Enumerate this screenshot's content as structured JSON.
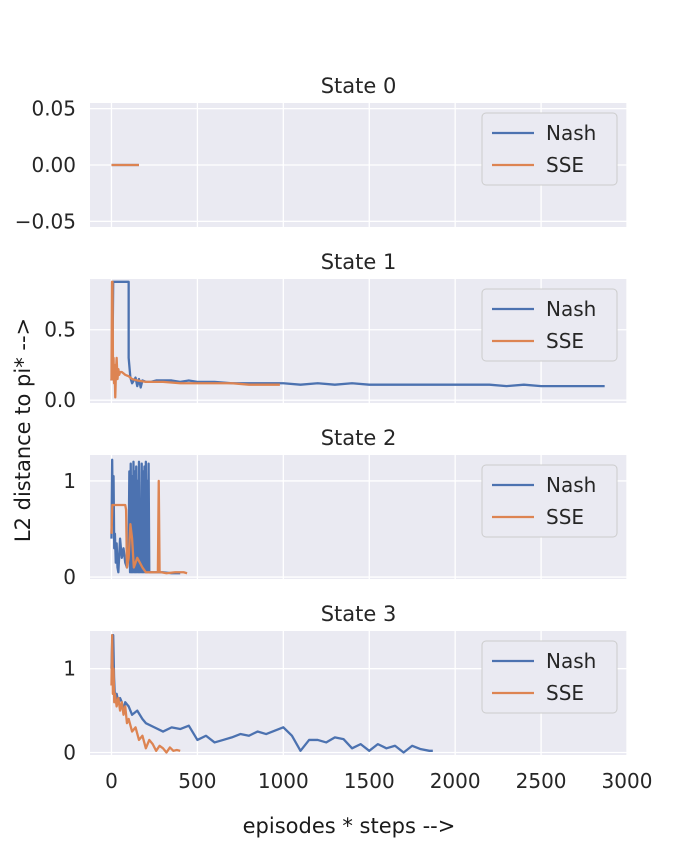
{
  "figure": {
    "ylabel": "L2 distance to pi* -->",
    "xlabel": "episodes * steps -->"
  },
  "chart_data": [
    {
      "type": "line",
      "title": "State 0",
      "xlim": [
        -125,
        3000
      ],
      "ylim": [
        -0.055,
        0.055
      ],
      "xticks": [
        0,
        500,
        1000,
        1500,
        2000,
        2500,
        3000
      ],
      "yticks": [
        -0.05,
        0.0,
        0.05
      ],
      "ytick_labels": [
        "−0.05",
        "0.00",
        "0.05"
      ],
      "grid": true,
      "legend": "upper right",
      "series": [
        {
          "name": "Nash",
          "color": "#4c72b0",
          "x": [
            0,
            160
          ],
          "y": [
            0.0,
            0.0
          ]
        },
        {
          "name": "SSE",
          "color": "#dd8452",
          "x": [
            0,
            160
          ],
          "y": [
            0.0,
            0.0
          ]
        }
      ]
    },
    {
      "type": "line",
      "title": "State 1",
      "xlim": [
        -125,
        3000
      ],
      "ylim": [
        -0.02,
        0.86
      ],
      "xticks": [
        0,
        500,
        1000,
        1500,
        2000,
        2500,
        3000
      ],
      "yticks": [
        0.0,
        0.5
      ],
      "ytick_labels": [
        "0.0",
        "0.5"
      ],
      "grid": true,
      "legend": "upper right",
      "series": [
        {
          "name": "Nash",
          "color": "#4c72b0",
          "x": [
            0,
            5,
            10,
            10,
            100,
            100,
            110,
            120,
            140,
            150,
            160,
            170,
            180,
            200,
            230,
            260,
            300,
            350,
            400,
            450,
            500,
            600,
            700,
            800,
            900,
            1000,
            1100,
            1200,
            1300,
            1400,
            1500,
            1600,
            1700,
            1800,
            1900,
            2000,
            2100,
            2200,
            2300,
            2400,
            2500,
            2600,
            2700,
            2800,
            2870
          ],
          "y": [
            0.14,
            0.2,
            0.84,
            0.84,
            0.84,
            0.3,
            0.16,
            0.12,
            0.16,
            0.1,
            0.15,
            0.09,
            0.14,
            0.13,
            0.13,
            0.14,
            0.14,
            0.14,
            0.13,
            0.14,
            0.13,
            0.13,
            0.12,
            0.12,
            0.12,
            0.12,
            0.11,
            0.12,
            0.11,
            0.12,
            0.11,
            0.11,
            0.11,
            0.11,
            0.11,
            0.11,
            0.11,
            0.11,
            0.1,
            0.11,
            0.1,
            0.1,
            0.1,
            0.1,
            0.1
          ]
        },
        {
          "name": "SSE",
          "color": "#dd8452",
          "x": [
            0,
            3,
            6,
            9,
            12,
            15,
            18,
            22,
            26,
            30,
            35,
            40,
            45,
            50,
            60,
            70,
            80,
            100,
            120,
            150,
            200,
            250,
            300,
            400,
            500,
            600,
            700,
            800,
            900,
            980
          ],
          "y": [
            0.14,
            0.84,
            0.84,
            0.15,
            0.3,
            0.12,
            0.25,
            0.02,
            0.2,
            0.3,
            0.15,
            0.22,
            0.18,
            0.2,
            0.2,
            0.19,
            0.18,
            0.17,
            0.15,
            0.14,
            0.13,
            0.13,
            0.13,
            0.12,
            0.12,
            0.12,
            0.12,
            0.11,
            0.11,
            0.11
          ]
        }
      ]
    },
    {
      "type": "line",
      "title": "State 2",
      "xlim": [
        -125,
        3000
      ],
      "ylim": [
        -0.02,
        1.27
      ],
      "xticks": [
        0,
        500,
        1000,
        1500,
        2000,
        2500,
        3000
      ],
      "yticks": [
        0,
        1
      ],
      "ytick_labels": [
        "0",
        "1"
      ],
      "grid": true,
      "legend": "upper right",
      "series": [
        {
          "name": "Nash",
          "color": "#4c72b0",
          "x": [
            0,
            4,
            8,
            12,
            16,
            20,
            25,
            30,
            35,
            40,
            50,
            60,
            70,
            80,
            90,
            100,
            104,
            108,
            112,
            116,
            120,
            124,
            128,
            132,
            136,
            140,
            144,
            148,
            152,
            156,
            160,
            164,
            168,
            172,
            176,
            180,
            184,
            188,
            192,
            196,
            200,
            204,
            208,
            212,
            216,
            220,
            300,
            350,
            400
          ],
          "y": [
            0.4,
            1.22,
            0.55,
            1.05,
            0.3,
            0.45,
            0.15,
            0.35,
            0.1,
            0.05,
            0.4,
            0.2,
            0.3,
            0.15,
            0.1,
            0.3,
            1.1,
            0.05,
            1.18,
            0.05,
            1.05,
            0.05,
            1.2,
            0.05,
            1.1,
            0.05,
            1.15,
            0.05,
            1.0,
            0.05,
            1.2,
            0.05,
            0.8,
            0.05,
            1.18,
            0.05,
            1.1,
            0.05,
            1.15,
            0.05,
            1.2,
            0.05,
            1.0,
            0.05,
            1.18,
            0.05,
            0.05,
            0.04,
            0.04
          ]
        },
        {
          "name": "SSE",
          "color": "#dd8452",
          "x": [
            0,
            5,
            10,
            15,
            20,
            50,
            80,
            85,
            90,
            100,
            110,
            120,
            130,
            150,
            180,
            200,
            230,
            250,
            270,
            275,
            280,
            285,
            290,
            320,
            370,
            420,
            440
          ],
          "y": [
            0.45,
            0.75,
            0.75,
            0.75,
            0.75,
            0.75,
            0.75,
            0.7,
            0.1,
            0.2,
            0.55,
            0.4,
            0.1,
            0.2,
            0.1,
            0.05,
            0.05,
            0.05,
            0.05,
            1.0,
            0.05,
            0.05,
            0.05,
            0.04,
            0.05,
            0.05,
            0.04
          ]
        }
      ]
    },
    {
      "type": "line",
      "title": "State 3",
      "xlim": [
        -125,
        3000
      ],
      "ylim": [
        -0.03,
        1.45
      ],
      "xticks": [
        0,
        500,
        1000,
        1500,
        2000,
        2500,
        3000
      ],
      "xtick_labels": [
        "0",
        "500",
        "1000",
        "1500",
        "2000",
        "2500",
        "3000"
      ],
      "yticks": [
        0,
        1
      ],
      "ytick_labels": [
        "0",
        "1"
      ],
      "grid": true,
      "legend": "upper right",
      "series": [
        {
          "name": "Nash",
          "color": "#4c72b0",
          "x": [
            0,
            5,
            10,
            15,
            20,
            30,
            40,
            50,
            60,
            70,
            80,
            100,
            120,
            150,
            180,
            200,
            250,
            300,
            350,
            400,
            450,
            500,
            550,
            600,
            650,
            700,
            750,
            800,
            850,
            900,
            950,
            1000,
            1050,
            1100,
            1150,
            1200,
            1250,
            1300,
            1350,
            1400,
            1450,
            1500,
            1550,
            1600,
            1650,
            1700,
            1750,
            1800,
            1850,
            1870
          ],
          "y": [
            1.0,
            1.4,
            1.4,
            0.9,
            0.65,
            0.7,
            0.6,
            0.65,
            0.6,
            0.5,
            0.6,
            0.55,
            0.45,
            0.5,
            0.4,
            0.35,
            0.3,
            0.25,
            0.3,
            0.28,
            0.32,
            0.15,
            0.2,
            0.12,
            0.15,
            0.18,
            0.22,
            0.2,
            0.25,
            0.22,
            0.26,
            0.3,
            0.2,
            0.02,
            0.15,
            0.15,
            0.12,
            0.18,
            0.16,
            0.05,
            0.1,
            0.02,
            0.1,
            0.05,
            0.08,
            0.0,
            0.08,
            0.04,
            0.02,
            0.02
          ]
        },
        {
          "name": "SSE",
          "color": "#dd8452",
          "x": [
            0,
            4,
            8,
            12,
            16,
            20,
            30,
            40,
            50,
            60,
            70,
            80,
            90,
            100,
            120,
            140,
            160,
            180,
            200,
            220,
            240,
            260,
            280,
            300,
            320,
            340,
            360,
            380,
            400
          ],
          "y": [
            0.8,
            1.4,
            0.7,
            1.0,
            0.6,
            0.7,
            0.55,
            0.65,
            0.5,
            0.6,
            0.45,
            0.55,
            0.35,
            0.4,
            0.25,
            0.3,
            0.15,
            0.2,
            0.05,
            0.15,
            0.1,
            0.02,
            0.08,
            0.05,
            0.0,
            0.06,
            0.02,
            0.03,
            0.02
          ]
        }
      ]
    }
  ]
}
